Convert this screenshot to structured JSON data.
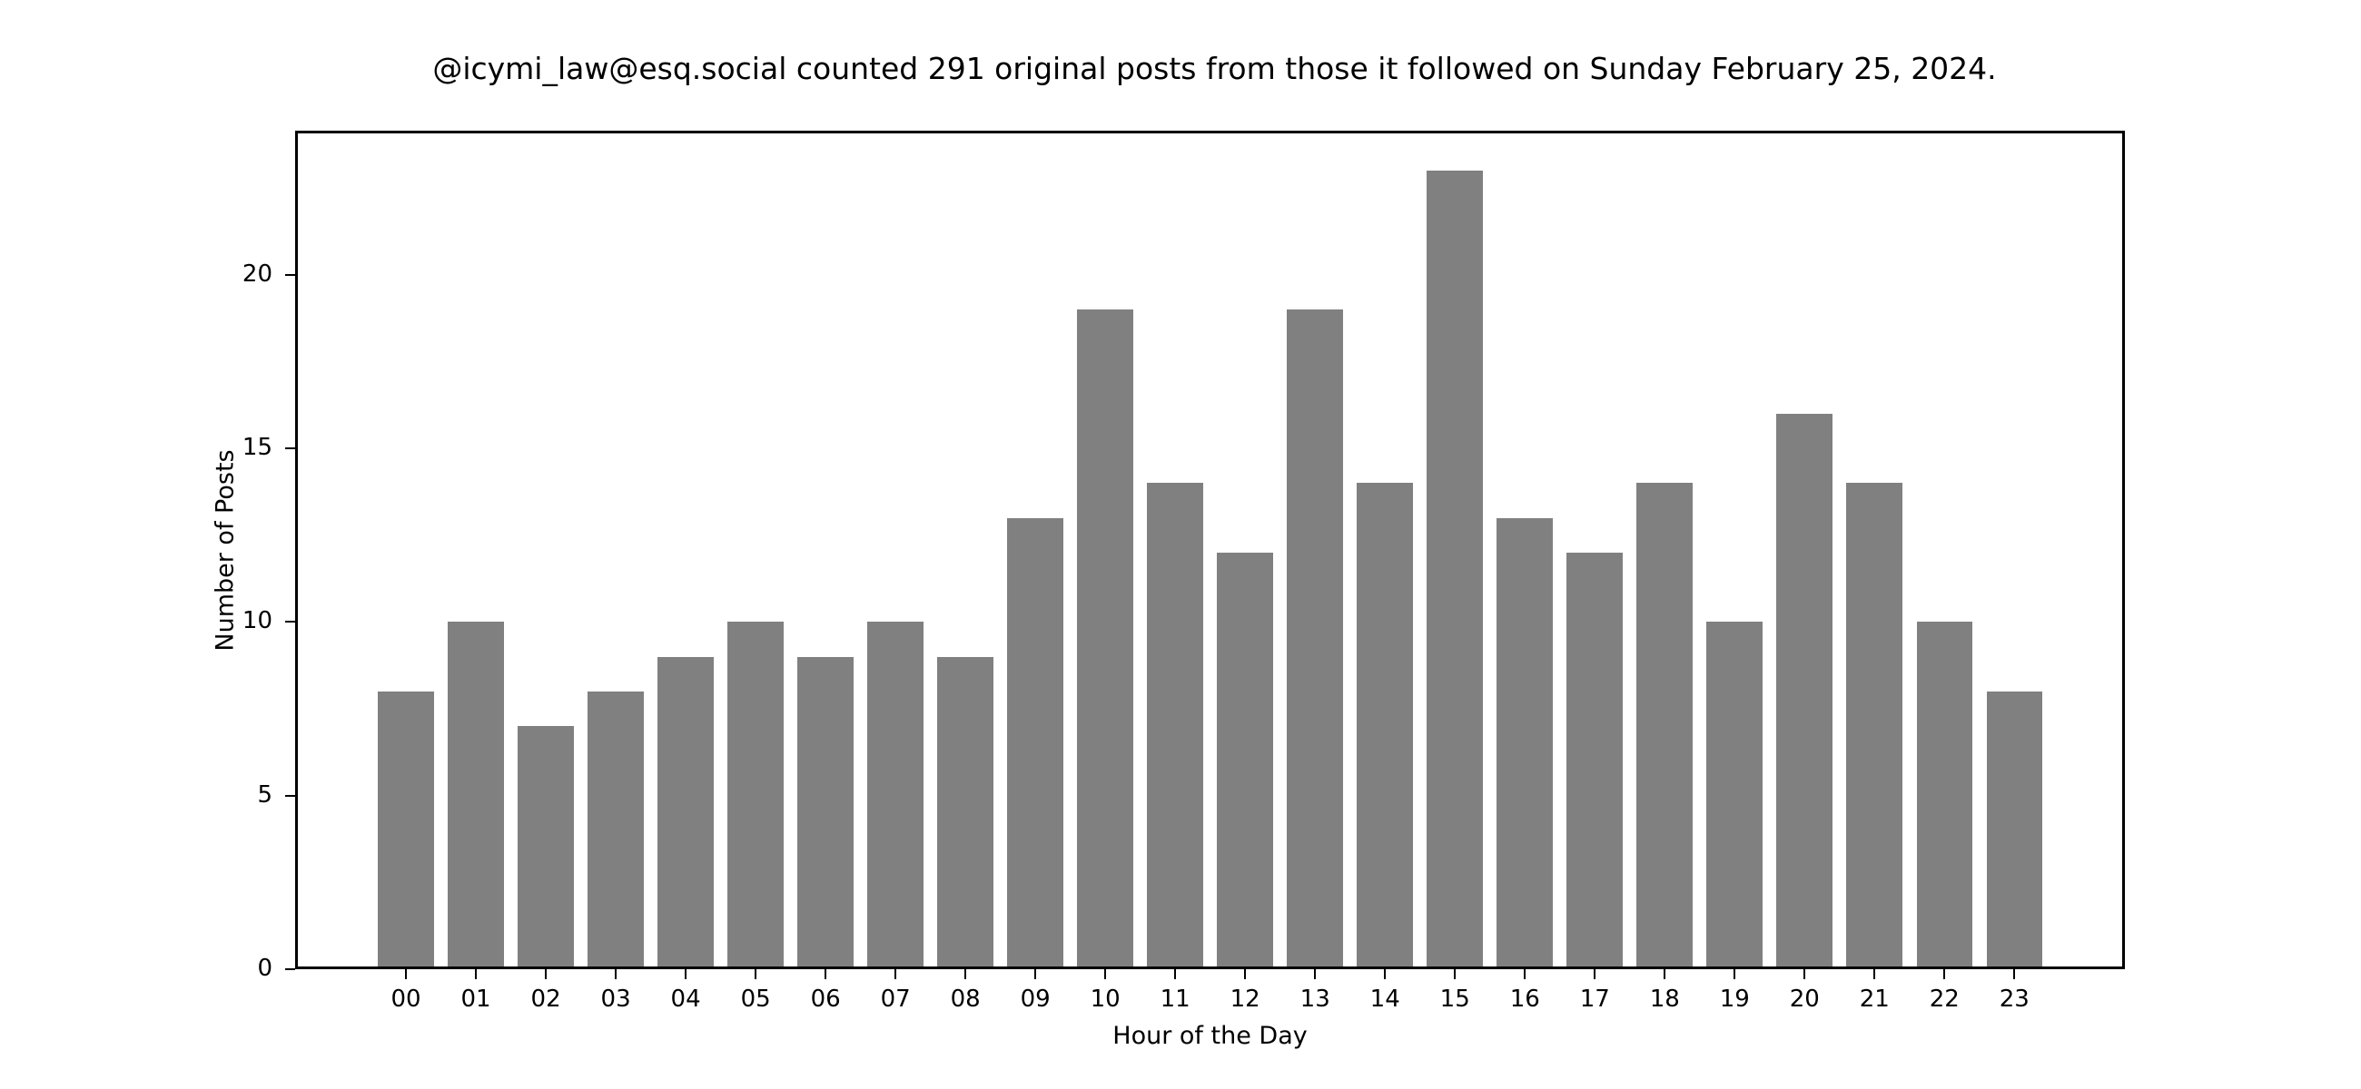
{
  "chart_data": {
    "type": "bar",
    "title": "@icymi_law@esq.social counted 291 original posts from those it followed on Sunday February 25, 2024.",
    "xlabel": "Hour of the Day",
    "ylabel": "Number of Posts",
    "categories": [
      "00",
      "01",
      "02",
      "03",
      "04",
      "05",
      "06",
      "07",
      "08",
      "09",
      "10",
      "11",
      "12",
      "13",
      "14",
      "15",
      "16",
      "17",
      "18",
      "19",
      "20",
      "21",
      "22",
      "23"
    ],
    "values": [
      8,
      10,
      7,
      8,
      9,
      10,
      9,
      10,
      9,
      13,
      19,
      14,
      12,
      19,
      14,
      23,
      13,
      12,
      14,
      10,
      16,
      14,
      10,
      8
    ],
    "yticks": [
      0,
      5,
      10,
      15,
      20
    ],
    "ylim": [
      0,
      24.15
    ],
    "xlim": [
      -1.585,
      24.58
    ],
    "bar_color": "#808080",
    "grid": false,
    "legend": null
  }
}
